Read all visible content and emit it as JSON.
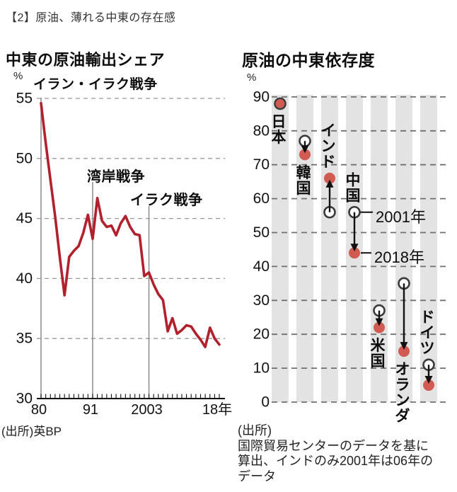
{
  "page": {
    "title": "【2】原油、薄れる中東の存在感"
  },
  "chart_data": [
    {
      "type": "line",
      "title": "中東の原油輸出シェア",
      "unit_label": "%",
      "x_years": [
        1980,
        1981,
        1982,
        1983,
        1984,
        1985,
        1986,
        1987,
        1988,
        1989,
        1990,
        1991,
        1992,
        1993,
        1994,
        1995,
        1996,
        1997,
        1998,
        1999,
        2000,
        2001,
        2002,
        2003,
        2004,
        2005,
        2006,
        2007,
        2008,
        2009,
        2010,
        2011,
        2012,
        2013,
        2014,
        2015,
        2016,
        2017,
        2018
      ],
      "values": [
        54.6,
        51.3,
        48.2,
        45.2,
        41.8,
        38.6,
        41.8,
        42.3,
        42.7,
        43.8,
        45.3,
        43.3,
        46.7,
        44.8,
        44.3,
        44.4,
        43.6,
        44.6,
        45.2,
        44.3,
        43.7,
        43.6,
        40.2,
        40.5,
        39.5,
        38.7,
        38.2,
        35.6,
        36.7,
        35.4,
        35.7,
        36.1,
        36.0,
        35.4,
        34.9,
        34.3,
        35.9,
        35.0,
        34.5
      ],
      "ylim": [
        30,
        55
      ],
      "yticks": [
        55,
        50,
        45,
        40,
        35,
        30
      ],
      "xticks": [
        {
          "year": 1980,
          "label": "80"
        },
        {
          "year": 1991,
          "label": "91"
        },
        {
          "year": 2003,
          "label": "2003"
        },
        {
          "year": 2018,
          "label": "18年"
        }
      ],
      "annotations": [
        {
          "year": 1980,
          "label": "イラン・イラク戦争"
        },
        {
          "year": 1991,
          "label": "湾岸戦争"
        },
        {
          "year": 2003,
          "label": "イラク戦争"
        }
      ],
      "source": "(出所)英BP",
      "grid": "dashed horizontal",
      "colors": {
        "line": "#b2202d",
        "event_line": "#8a8a8a",
        "grid": "#999999",
        "axis": "#111111"
      }
    },
    {
      "type": "scatter",
      "subtype": "dumbbell dot plot, 2001 open circle vs 2018 filled dot, arrows show change",
      "title": "原油の中東依存度",
      "unit_label": "%",
      "categories": [
        "日本",
        "韓国",
        "インド",
        "中国",
        "米国",
        "オランダ",
        "ドイツ"
      ],
      "series": [
        {
          "name": "2001年",
          "marker": "open-circle",
          "values": [
            88,
            77,
            56,
            56,
            27,
            35,
            11
          ]
        },
        {
          "name": "2018年",
          "marker": "red-dot",
          "values": [
            88,
            73,
            66,
            44,
            22,
            15,
            5
          ]
        }
      ],
      "label_side": [
        "below",
        "below",
        "above",
        "above",
        "below",
        "below",
        "above"
      ],
      "legend_anchor_category": "中国",
      "ylim": [
        0,
        90
      ],
      "yticks": [
        90,
        80,
        70,
        60,
        50,
        40,
        30,
        20,
        10,
        0
      ],
      "grid": "dashed horizontal over gray column bands",
      "source_lines": [
        "(出所)",
        "国際貿易センターのデータを基に",
        "算出、インドのみ2001年は06年の",
        "データ"
      ],
      "colors": {
        "dot_2018": "#d15b52",
        "circle_2001_stroke": "#3a3a3a",
        "band": "#e3e3e3",
        "arrow": "#111111",
        "grid": "#707070"
      }
    }
  ]
}
